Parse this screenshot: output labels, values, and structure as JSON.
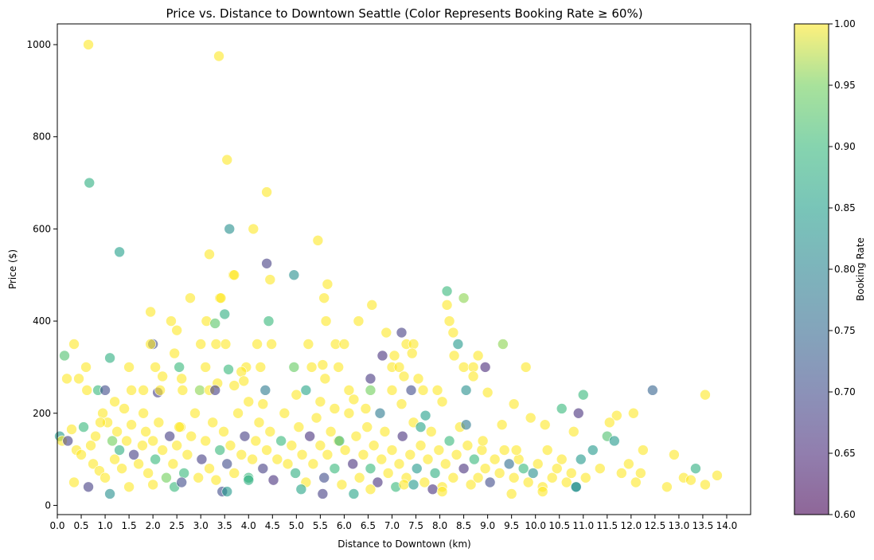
{
  "chart_data": {
    "type": "scatter",
    "title": "Price vs. Distance to Downtown Seattle (Color Represents Booking Rate ≥ 60%)",
    "xlabel": "Distance to Downtown (km)",
    "ylabel": "Price ($)",
    "xlim": [
      0,
      14.5
    ],
    "ylim": [
      -20,
      1045
    ],
    "x_ticks": [
      "0.0",
      "0.5",
      "1.0",
      "1.5",
      "2.0",
      "2.5",
      "3.0",
      "3.5",
      "4.0",
      "4.5",
      "5.0",
      "5.5",
      "6.0",
      "6.5",
      "7.0",
      "7.5",
      "8.0",
      "8.5",
      "9.0",
      "9.5",
      "10.0",
      "10.5",
      "11.0",
      "11.5",
      "12.0",
      "12.5",
      "13.0",
      "13.5",
      "14.0"
    ],
    "y_ticks": [
      "0",
      "200",
      "400",
      "600",
      "800",
      "1000"
    ],
    "grid": false,
    "colorbar": {
      "label": "Booking Rate",
      "range": [
        0.6,
        1.0
      ],
      "ticks": [
        "0.60",
        "0.65",
        "0.70",
        "0.75",
        "0.80",
        "0.85",
        "0.90",
        "0.95",
        "1.00"
      ],
      "colormap": "viridis"
    },
    "point_alpha": 0.6,
    "points": [
      [
        0.65,
        1000,
        1.0
      ],
      [
        3.38,
        975,
        1.0
      ],
      [
        0.67,
        700,
        0.88
      ],
      [
        3.55,
        750,
        1.0
      ],
      [
        4.38,
        680,
        1.0
      ],
      [
        4.1,
        600,
        1.0
      ],
      [
        3.6,
        600,
        0.82
      ],
      [
        1.3,
        550,
        0.85
      ],
      [
        3.18,
        545,
        1.0
      ],
      [
        5.45,
        575,
        1.0
      ],
      [
        4.38,
        525,
        0.68
      ],
      [
        4.95,
        500,
        0.82
      ],
      [
        3.68,
        500,
        1.0
      ],
      [
        3.7,
        500,
        1.0
      ],
      [
        4.45,
        490,
        1.0
      ],
      [
        5.65,
        480,
        1.0
      ],
      [
        8.15,
        465,
        0.9
      ],
      [
        6.58,
        435,
        1.0
      ],
      [
        8.15,
        435,
        1.0
      ],
      [
        3.4,
        450,
        1.0
      ],
      [
        3.42,
        450,
        1.0
      ],
      [
        2.78,
        450,
        1.0
      ],
      [
        5.58,
        450,
        1.0
      ],
      [
        8.5,
        450,
        0.96
      ],
      [
        1.95,
        420,
        1.0
      ],
      [
        3.5,
        415,
        0.88
      ],
      [
        2.38,
        400,
        1.0
      ],
      [
        3.12,
        400,
        1.0
      ],
      [
        4.42,
        400,
        0.9
      ],
      [
        5.62,
        400,
        1.0
      ],
      [
        6.3,
        400,
        1.0
      ],
      [
        8.2,
        400,
        1.0
      ],
      [
        3.3,
        395,
        0.93
      ],
      [
        2.5,
        380,
        1.0
      ],
      [
        7.2,
        375,
        0.68
      ],
      [
        8.28,
        375,
        1.0
      ],
      [
        6.88,
        375,
        1.0
      ],
      [
        0.35,
        350,
        1.0
      ],
      [
        2.0,
        350,
        0.7
      ],
      [
        1.95,
        350,
        1.0
      ],
      [
        3.0,
        350,
        1.0
      ],
      [
        3.32,
        350,
        1.0
      ],
      [
        3.52,
        350,
        1.0
      ],
      [
        4.18,
        350,
        1.0
      ],
      [
        4.48,
        350,
        1.0
      ],
      [
        5.25,
        350,
        1.0
      ],
      [
        5.82,
        350,
        1.0
      ],
      [
        6.0,
        350,
        1.0
      ],
      [
        7.3,
        350,
        1.0
      ],
      [
        7.45,
        350,
        1.0
      ],
      [
        8.38,
        350,
        0.84
      ],
      [
        9.32,
        350,
        0.96
      ],
      [
        0.15,
        325,
        0.92
      ],
      [
        2.45,
        330,
        1.0
      ],
      [
        6.8,
        325,
        0.66
      ],
      [
        7.05,
        325,
        1.0
      ],
      [
        8.3,
        325,
        1.0
      ],
      [
        8.8,
        325,
        1.0
      ],
      [
        1.1,
        320,
        0.88
      ],
      [
        7.42,
        330,
        1.0
      ],
      [
        0.6,
        300,
        1.0
      ],
      [
        1.5,
        300,
        1.0
      ],
      [
        2.05,
        300,
        1.0
      ],
      [
        2.55,
        300,
        0.9
      ],
      [
        3.1,
        300,
        1.0
      ],
      [
        3.58,
        295,
        0.9
      ],
      [
        3.95,
        300,
        1.0
      ],
      [
        4.25,
        300,
        1.0
      ],
      [
        4.95,
        300,
        0.94
      ],
      [
        5.32,
        300,
        1.0
      ],
      [
        5.55,
        305,
        1.0
      ],
      [
        5.88,
        300,
        1.0
      ],
      [
        7.0,
        300,
        1.0
      ],
      [
        7.15,
        300,
        1.0
      ],
      [
        8.5,
        300,
        1.0
      ],
      [
        8.7,
        300,
        1.0
      ],
      [
        8.95,
        300,
        0.65
      ],
      [
        9.8,
        300,
        1.0
      ],
      [
        6.55,
        275,
        0.67
      ],
      [
        0.2,
        275,
        1.0
      ],
      [
        0.45,
        275,
        1.0
      ],
      [
        2.2,
        280,
        1.0
      ],
      [
        2.6,
        275,
        1.0
      ],
      [
        3.35,
        265,
        1.0
      ],
      [
        3.85,
        290,
        1.0
      ],
      [
        5.6,
        275,
        1.0
      ],
      [
        7.25,
        280,
        1.0
      ],
      [
        7.55,
        275,
        1.0
      ],
      [
        8.7,
        280,
        1.0
      ],
      [
        0.62,
        250,
        1.0
      ],
      [
        0.85,
        250,
        0.9
      ],
      [
        1.0,
        250,
        0.7
      ],
      [
        1.55,
        250,
        1.0
      ],
      [
        1.8,
        250,
        1.0
      ],
      [
        2.1,
        245,
        0.68
      ],
      [
        2.62,
        250,
        1.0
      ],
      [
        2.98,
        250,
        0.96
      ],
      [
        3.18,
        250,
        1.0
      ],
      [
        3.3,
        250,
        0.68
      ],
      [
        3.7,
        260,
        1.0
      ],
      [
        4.35,
        250,
        0.78
      ],
      [
        5.2,
        250,
        0.86
      ],
      [
        6.1,
        250,
        1.0
      ],
      [
        6.55,
        250,
        0.95
      ],
      [
        7.0,
        250,
        1.0
      ],
      [
        7.4,
        250,
        0.7
      ],
      [
        7.65,
        250,
        1.0
      ],
      [
        7.95,
        250,
        1.0
      ],
      [
        8.55,
        250,
        0.82
      ],
      [
        9.0,
        245,
        1.0
      ],
      [
        12.45,
        250,
        0.74
      ],
      [
        11.0,
        240,
        0.9
      ],
      [
        13.55,
        240,
        1.0
      ],
      [
        5.0,
        240,
        1.0
      ],
      [
        6.2,
        230,
        1.0
      ],
      [
        1.2,
        225,
        1.0
      ],
      [
        4.3,
        220,
        1.0
      ],
      [
        4.0,
        225,
        1.0
      ],
      [
        5.5,
        225,
        1.0
      ],
      [
        7.2,
        220,
        1.0
      ],
      [
        8.05,
        225,
        1.0
      ],
      [
        9.55,
        220,
        1.0
      ],
      [
        10.55,
        210,
        0.9
      ],
      [
        10.9,
        200,
        0.66
      ],
      [
        12.05,
        200,
        1.0
      ],
      [
        11.7,
        195,
        1.0
      ],
      [
        0.05,
        150,
        0.84
      ],
      [
        0.1,
        140,
        1.0
      ],
      [
        0.22,
        140,
        0.68
      ],
      [
        0.3,
        165,
        1.0
      ],
      [
        0.4,
        120,
        1.0
      ],
      [
        0.5,
        110,
        1.0
      ],
      [
        0.55,
        170,
        0.9
      ],
      [
        0.7,
        130,
        1.0
      ],
      [
        0.75,
        90,
        1.0
      ],
      [
        0.8,
        150,
        1.0
      ],
      [
        0.88,
        75,
        1.0
      ],
      [
        0.95,
        200,
        1.0
      ],
      [
        1.05,
        180,
        1.0
      ],
      [
        1.15,
        140,
        0.95
      ],
      [
        1.2,
        100,
        1.0
      ],
      [
        1.25,
        160,
        1.0
      ],
      [
        1.3,
        120,
        0.88
      ],
      [
        1.35,
        80,
        1.0
      ],
      [
        1.45,
        140,
        1.0
      ],
      [
        1.55,
        175,
        1.0
      ],
      [
        1.6,
        110,
        0.68
      ],
      [
        1.7,
        90,
        1.0
      ],
      [
        1.78,
        130,
        1.0
      ],
      [
        1.85,
        160,
        1.0
      ],
      [
        1.9,
        70,
        1.0
      ],
      [
        2.0,
        140,
        1.0
      ],
      [
        2.05,
        100,
        0.9
      ],
      [
        2.12,
        180,
        1.0
      ],
      [
        2.2,
        120,
        1.0
      ],
      [
        2.28,
        60,
        0.95
      ],
      [
        2.35,
        150,
        0.68
      ],
      [
        2.42,
        90,
        1.0
      ],
      [
        2.5,
        130,
        1.0
      ],
      [
        2.58,
        170,
        1.0
      ],
      [
        2.65,
        70,
        0.9
      ],
      [
        2.72,
        110,
        1.0
      ],
      [
        2.8,
        150,
        1.0
      ],
      [
        2.88,
        200,
        1.0
      ],
      [
        2.95,
        60,
        1.0
      ],
      [
        3.02,
        100,
        0.68
      ],
      [
        3.1,
        140,
        1.0
      ],
      [
        3.18,
        80,
        1.0
      ],
      [
        3.25,
        180,
        1.0
      ],
      [
        3.32,
        55,
        1.0
      ],
      [
        3.4,
        120,
        0.9
      ],
      [
        3.48,
        160,
        1.0
      ],
      [
        3.55,
        90,
        0.7
      ],
      [
        3.62,
        130,
        1.0
      ],
      [
        3.7,
        70,
        1.0
      ],
      [
        3.78,
        200,
        1.0
      ],
      [
        3.85,
        110,
        1.0
      ],
      [
        3.92,
        150,
        0.68
      ],
      [
        4.0,
        60,
        0.9
      ],
      [
        4.08,
        100,
        1.0
      ],
      [
        4.15,
        140,
        1.0
      ],
      [
        4.22,
        180,
        1.0
      ],
      [
        4.3,
        80,
        0.68
      ],
      [
        4.38,
        120,
        1.0
      ],
      [
        4.45,
        160,
        1.0
      ],
      [
        4.52,
        55,
        0.66
      ],
      [
        4.6,
        100,
        1.0
      ],
      [
        4.68,
        140,
        0.9
      ],
      [
        4.75,
        200,
        1.0
      ],
      [
        4.82,
        90,
        1.0
      ],
      [
        4.9,
        130,
        1.0
      ],
      [
        4.98,
        70,
        0.88
      ],
      [
        5.05,
        170,
        1.0
      ],
      [
        5.12,
        110,
        1.0
      ],
      [
        5.2,
        50,
        1.0
      ],
      [
        5.28,
        150,
        0.66
      ],
      [
        5.35,
        90,
        1.0
      ],
      [
        5.42,
        190,
        1.0
      ],
      [
        5.5,
        130,
        1.0
      ],
      [
        5.58,
        60,
        0.7
      ],
      [
        5.65,
        110,
        1.0
      ],
      [
        5.72,
        160,
        1.0
      ],
      [
        5.8,
        80,
        0.9
      ],
      [
        5.88,
        140,
        1.0
      ],
      [
        5.95,
        45,
        1.0
      ],
      [
        6.02,
        120,
        1.0
      ],
      [
        6.1,
        200,
        1.0
      ],
      [
        6.18,
        90,
        0.66
      ],
      [
        6.25,
        150,
        1.0
      ],
      [
        6.32,
        60,
        1.0
      ],
      [
        6.4,
        110,
        1.0
      ],
      [
        6.48,
        170,
        1.0
      ],
      [
        6.55,
        80,
        0.9
      ],
      [
        6.62,
        130,
        1.0
      ],
      [
        6.7,
        50,
        0.66
      ],
      [
        6.78,
        100,
        1.0
      ],
      [
        6.85,
        160,
        1.0
      ],
      [
        6.92,
        70,
        1.0
      ],
      [
        7.0,
        120,
        1.0
      ],
      [
        7.08,
        40,
        0.9
      ],
      [
        7.15,
        90,
        1.0
      ],
      [
        7.22,
        150,
        0.66
      ],
      [
        7.3,
        60,
        1.0
      ],
      [
        7.38,
        110,
        1.0
      ],
      [
        7.45,
        180,
        1.0
      ],
      [
        7.52,
        80,
        0.84
      ],
      [
        7.6,
        130,
        1.0
      ],
      [
        7.68,
        50,
        1.0
      ],
      [
        7.75,
        100,
        1.0
      ],
      [
        7.82,
        160,
        1.0
      ],
      [
        7.9,
        70,
        0.88
      ],
      [
        7.98,
        120,
        1.0
      ],
      [
        8.05,
        40,
        1.0
      ],
      [
        8.12,
        90,
        1.0
      ],
      [
        8.2,
        140,
        0.9
      ],
      [
        8.28,
        60,
        1.0
      ],
      [
        8.35,
        110,
        1.0
      ],
      [
        8.42,
        170,
        1.0
      ],
      [
        8.5,
        80,
        0.66
      ],
      [
        8.58,
        130,
        1.0
      ],
      [
        8.65,
        45,
        1.0
      ],
      [
        8.72,
        100,
        0.9
      ],
      [
        8.8,
        60,
        1.0
      ],
      [
        8.88,
        120,
        1.0
      ],
      [
        8.95,
        80,
        1.0
      ],
      [
        9.05,
        50,
        0.7
      ],
      [
        9.15,
        100,
        1.0
      ],
      [
        9.25,
        70,
        1.0
      ],
      [
        9.35,
        120,
        1.0
      ],
      [
        9.45,
        90,
        0.76
      ],
      [
        9.55,
        60,
        1.0
      ],
      [
        9.65,
        100,
        1.0
      ],
      [
        9.75,
        80,
        0.9
      ],
      [
        9.85,
        50,
        1.0
      ],
      [
        9.95,
        70,
        0.82
      ],
      [
        10.05,
        90,
        1.0
      ],
      [
        10.15,
        40,
        1.0
      ],
      [
        10.25,
        120,
        1.0
      ],
      [
        10.35,
        60,
        1.0
      ],
      [
        10.45,
        80,
        1.0
      ],
      [
        10.55,
        100,
        1.0
      ],
      [
        10.65,
        50,
        1.0
      ],
      [
        10.75,
        70,
        1.0
      ],
      [
        10.85,
        40,
        0.78
      ],
      [
        10.95,
        100,
        0.84
      ],
      [
        11.05,
        60,
        1.0
      ],
      [
        11.2,
        120,
        0.84
      ],
      [
        11.35,
        80,
        1.0
      ],
      [
        11.5,
        150,
        0.92
      ],
      [
        11.65,
        140,
        0.84
      ],
      [
        11.8,
        70,
        1.0
      ],
      [
        11.95,
        90,
        1.0
      ],
      [
        12.1,
        50,
        1.0
      ],
      [
        12.25,
        120,
        1.0
      ],
      [
        12.75,
        40,
        1.0
      ],
      [
        12.9,
        110,
        1.0
      ],
      [
        13.1,
        60,
        1.0
      ],
      [
        13.25,
        55,
        1.0
      ],
      [
        13.35,
        80,
        0.88
      ],
      [
        13.55,
        45,
        1.0
      ],
      [
        13.8,
        65,
        1.0
      ],
      [
        0.35,
        50,
        1.0
      ],
      [
        0.65,
        40,
        0.68
      ],
      [
        1.0,
        60,
        1.0
      ],
      [
        1.1,
        25,
        0.82
      ],
      [
        1.5,
        40,
        1.0
      ],
      [
        2.0,
        45,
        1.0
      ],
      [
        2.45,
        40,
        0.9
      ],
      [
        2.6,
        50,
        0.7
      ],
      [
        3.45,
        30,
        0.7
      ],
      [
        3.55,
        30,
        0.84
      ],
      [
        4.0,
        55,
        0.88
      ],
      [
        5.1,
        35,
        0.86
      ],
      [
        5.55,
        25,
        0.68
      ],
      [
        6.2,
        25,
        0.86
      ],
      [
        6.55,
        35,
        1.0
      ],
      [
        7.25,
        45,
        1.0
      ],
      [
        7.45,
        45,
        0.84
      ],
      [
        7.85,
        35,
        0.66
      ],
      [
        8.05,
        30,
        1.0
      ],
      [
        9.5,
        25,
        1.0
      ],
      [
        10.15,
        30,
        1.0
      ],
      [
        10.85,
        40,
        0.84
      ],
      [
        1.8,
        200,
        1.0
      ],
      [
        2.15,
        250,
        1.0
      ],
      [
        2.55,
        170,
        1.0
      ],
      [
        3.9,
        270,
        1.0
      ],
      [
        0.9,
        180,
        1.0
      ],
      [
        1.4,
        210,
        1.0
      ],
      [
        5.8,
        210,
        1.0
      ],
      [
        6.45,
        210,
        1.0
      ],
      [
        7.7,
        195,
        0.85
      ],
      [
        8.55,
        175,
        0.78
      ],
      [
        9.3,
        175,
        1.0
      ],
      [
        10.2,
        175,
        1.0
      ],
      [
        10.8,
        160,
        1.0
      ],
      [
        11.55,
        180,
        1.0
      ],
      [
        12.2,
        70,
        1.0
      ],
      [
        9.9,
        190,
        1.0
      ],
      [
        5.9,
        140,
        0.9
      ],
      [
        6.75,
        200,
        0.78
      ],
      [
        7.6,
        170,
        0.86
      ],
      [
        8.9,
        140,
        1.0
      ],
      [
        9.6,
        120,
        1.0
      ]
    ]
  }
}
